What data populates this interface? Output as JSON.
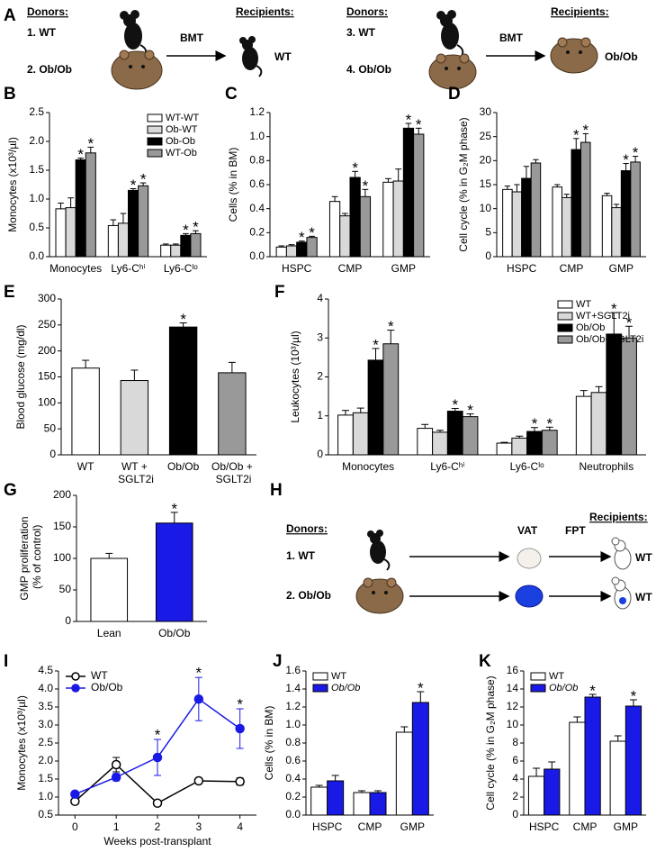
{
  "panel_a": {
    "panel": "A",
    "donors_left": "Donors:",
    "donor_1": "1. WT",
    "donor_2": "2. Ob/Ob",
    "arrow_left": "BMT",
    "recipients_left": "Recipients:",
    "recipient_left": "WT",
    "donors_right": "Donors:",
    "donor_3": "3. WT",
    "donor_4": "4. Ob/Ob",
    "arrow_right": "BMT",
    "recipients_right": "Recipients:",
    "recipient_right": "Ob/Ob"
  },
  "panel_h": {
    "panel": "H",
    "donors": "Donors:",
    "donor_1": "1. WT",
    "donor_2": "2. Ob/Ob",
    "tissue": "VAT",
    "procedure": "FPT",
    "recipients": "Recipients:",
    "recipient_1": "WT",
    "recipient_2": "WT"
  },
  "chart_data": [
    {
      "type": "bar",
      "panel": "B",
      "ylabel": "Monocytes (x10³/µl)",
      "categories": [
        "Monocytes",
        "Ly6-Cʰⁱ",
        "Ly6-Cˡᵒ"
      ],
      "ylim": [
        0,
        2.5
      ],
      "yticks": [
        {
          "value": 0,
          "label": "0.0"
        },
        0.5,
        {
          "value": 1,
          "label": "1.0"
        },
        1.5,
        {
          "value": 2,
          "label": "2.0"
        },
        2.5
      ],
      "legend": "top-right",
      "series": [
        {
          "name": "WT-WT",
          "color": "#ffffff",
          "values": [
            0.83,
            0.54,
            0.2
          ],
          "errors": [
            0.1,
            0.1,
            0.02
          ]
        },
        {
          "name": "Ob-WT",
          "color": "#d9d9d9",
          "values": [
            0.85,
            0.58,
            0.2
          ],
          "errors": [
            0.17,
            0.17,
            0.02
          ]
        },
        {
          "name": "Ob-Ob",
          "color": "#000000",
          "values": [
            1.68,
            1.15,
            0.37
          ],
          "errors": [
            0.03,
            0.03,
            0.03
          ],
          "stars": [
            "*",
            "*",
            "*"
          ]
        },
        {
          "name": "WT-Ob",
          "color": "#999999",
          "values": [
            1.8,
            1.23,
            0.4
          ],
          "errors": [
            0.1,
            0.05,
            0.05
          ],
          "stars": [
            "*",
            "*",
            "*"
          ]
        }
      ]
    },
    {
      "type": "bar",
      "panel": "C",
      "ylabel": "Cells (% in BM)",
      "categories": [
        "HSPC",
        "CMP",
        "GMP"
      ],
      "ylim": [
        0,
        1.2
      ],
      "yticks": [
        {
          "value": 0,
          "label": "0.0"
        },
        0.2,
        0.4,
        0.6,
        0.8,
        {
          "value": 1,
          "label": "1.0"
        },
        1.2
      ],
      "series": [
        {
          "color": "#ffffff",
          "values": [
            0.08,
            0.46,
            0.62
          ],
          "errors": [
            0.01,
            0.04,
            0.03
          ]
        },
        {
          "color": "#d9d9d9",
          "values": [
            0.09,
            0.34,
            0.63
          ],
          "errors": [
            0.01,
            0.02,
            0.1
          ]
        },
        {
          "color": "#000000",
          "values": [
            0.12,
            0.66,
            1.07
          ],
          "errors": [
            0.01,
            0.05,
            0.04
          ],
          "stars": [
            "*",
            "*",
            "*"
          ]
        },
        {
          "color": "#999999",
          "values": [
            0.16,
            0.5,
            1.02
          ],
          "errors": [
            0.01,
            0.06,
            0.05
          ],
          "stars": [
            "*",
            "*",
            "*"
          ]
        }
      ]
    },
    {
      "type": "bar",
      "panel": "D",
      "ylabel": "Cell cycle (% in G₂M phase)",
      "categories": [
        "HSPC",
        "CMP",
        "GMP"
      ],
      "ylim": [
        0,
        30
      ],
      "yticks": [
        0,
        5,
        10,
        15,
        20,
        25,
        30
      ],
      "series": [
        {
          "color": "#ffffff",
          "values": [
            14,
            14.5,
            12.7
          ],
          "errors": [
            0.7,
            0.5,
            0.5
          ]
        },
        {
          "color": "#d9d9d9",
          "values": [
            13.5,
            12.3,
            10.2
          ],
          "errors": [
            1.5,
            0.7,
            0.7
          ]
        },
        {
          "color": "#000000",
          "values": [
            16.3,
            22.3,
            17.9
          ],
          "errors": [
            2.5,
            2.3,
            1.5
          ],
          "stars": [
            null,
            "*",
            "*"
          ]
        },
        {
          "color": "#999999",
          "values": [
            19.5,
            23.8,
            19.7
          ],
          "errors": [
            0.7,
            1.8,
            1.2
          ],
          "stars": [
            null,
            "*",
            "*"
          ]
        }
      ]
    },
    {
      "type": "bar",
      "panel": "E",
      "ylabel": "Blood glucose (mg/dl)",
      "categories": [
        "WT",
        "WT + SGLT2i",
        "Ob/Ob",
        "Ob/Ob + SGLT2i"
      ],
      "ylim": [
        0,
        300
      ],
      "yticks": [
        0,
        50,
        100,
        150,
        200,
        250,
        300
      ],
      "series": [
        {
          "colors": [
            "#ffffff",
            "#d9d9d9",
            "#000000",
            "#999999"
          ],
          "values": [
            167,
            143,
            246,
            158
          ],
          "errors": [
            15,
            20,
            8,
            20
          ],
          "stars": [
            null,
            null,
            "*",
            null
          ]
        }
      ]
    },
    {
      "type": "bar",
      "panel": "F",
      "ylabel": "Leukocytes (10³/µl)",
      "categories": [
        "Monocytes",
        "Ly6-Cʰⁱ",
        "Ly6-Cˡᵒ",
        "Neutrophils"
      ],
      "ylim": [
        0,
        4
      ],
      "yticks": [
        0,
        1,
        2,
        3,
        4
      ],
      "legend": "top-right",
      "series": [
        {
          "name": "WT",
          "color": "#ffffff",
          "values": [
            1.02,
            0.68,
            0.3,
            1.5
          ],
          "errors": [
            0.12,
            0.1,
            0.02,
            0.15
          ]
        },
        {
          "name": "WT+SGLT2i",
          "color": "#d9d9d9",
          "values": [
            1.08,
            0.58,
            0.43,
            1.6
          ],
          "errors": [
            0.12,
            0.05,
            0.05,
            0.15
          ]
        },
        {
          "name": "Ob/Ob",
          "color": "#000000",
          "values": [
            2.43,
            1.12,
            0.6,
            3.1
          ],
          "errors": [
            0.3,
            0.07,
            0.1,
            0.55
          ],
          "stars": [
            "*",
            "*",
            "*",
            "*"
          ]
        },
        {
          "name": "Ob/Ob+SGLT2i",
          "color": "#999999",
          "values": [
            2.85,
            0.98,
            0.63,
            3.0
          ],
          "errors": [
            0.35,
            0.07,
            0.08,
            0.3
          ],
          "stars": [
            "*",
            "*",
            "*",
            "*"
          ]
        }
      ]
    },
    {
      "type": "bar",
      "panel": "G",
      "ylabel": "GMP proliferation (% of control)",
      "categories": [
        "Lean",
        "Ob/Ob"
      ],
      "ylim": [
        0,
        200
      ],
      "yticks": [
        0,
        50,
        100,
        150,
        200
      ],
      "series": [
        {
          "colors": [
            "#ffffff",
            "#1a1ae6"
          ],
          "values": [
            100,
            156
          ],
          "errors": [
            8,
            17
          ],
          "stars": [
            null,
            "*"
          ]
        }
      ]
    },
    {
      "type": "line",
      "panel": "I",
      "ylabel": "Monocytes (x10³/µl)",
      "xlabel": "Weeks post-transplant",
      "x": [
        0,
        1,
        2,
        3,
        4
      ],
      "xlim": [
        -0.4,
        4.4
      ],
      "xticks": [
        0,
        1,
        2,
        3,
        4
      ],
      "ylim": [
        0.5,
        4.5
      ],
      "yticks": [
        0.5,
        {
          "value": 1,
          "label": "1.0"
        },
        1.5,
        {
          "value": 2,
          "label": "2.0"
        },
        2.5,
        {
          "value": 3,
          "label": "3.0"
        },
        3.5,
        {
          "value": 4,
          "label": "4.0"
        },
        4.5
      ],
      "legend": "top-left",
      "series": [
        {
          "name": "WT",
          "color": "#000000",
          "markerfill": "#ffffff",
          "values": [
            0.88,
            1.9,
            0.83,
            1.45,
            1.43
          ],
          "errors": [
            0.07,
            0.2,
            0.08,
            0.03,
            0.1
          ]
        },
        {
          "name": "Ob/Ob",
          "color": "#1a1ae6",
          "markerfill": "#1a1ae6",
          "values": [
            1.08,
            1.55,
            2.1,
            3.72,
            2.9
          ],
          "errors": [
            0.07,
            0.1,
            0.5,
            0.6,
            0.55
          ],
          "stars": [
            null,
            null,
            "*",
            "*",
            "*"
          ]
        }
      ]
    },
    {
      "type": "bar",
      "panel": "J",
      "ylabel": "Cells (% in BM)",
      "categories": [
        "HSPC",
        "CMP",
        "GMP"
      ],
      "ylim": [
        0,
        1.6
      ],
      "yticks": [
        {
          "value": 0,
          "label": "0.0"
        },
        0.2,
        0.4,
        0.6,
        0.8,
        {
          "value": 1,
          "label": "1.0"
        },
        1.2,
        1.4,
        1.6
      ],
      "legend": "top-left",
      "series": [
        {
          "name": "WT",
          "color": "#ffffff",
          "values": [
            0.31,
            0.25,
            0.92
          ],
          "errors": [
            0.02,
            0.02,
            0.06
          ]
        },
        {
          "name": "Ob/Ob",
          "color": "#1a1ae6",
          "font_style": "italic",
          "values": [
            0.38,
            0.25,
            1.25
          ],
          "errors": [
            0.06,
            0.02,
            0.12
          ],
          "stars": [
            null,
            null,
            "*"
          ]
        }
      ]
    },
    {
      "type": "bar",
      "panel": "K",
      "ylabel": "Cell cycle (% in G₂M phase)",
      "categories": [
        "HSPC",
        "CMP",
        "GMP"
      ],
      "ylim": [
        0,
        16
      ],
      "yticks": [
        0,
        2,
        4,
        6,
        8,
        10,
        12,
        14,
        16
      ],
      "legend": "top-left",
      "series": [
        {
          "name": "WT",
          "color": "#ffffff",
          "values": [
            4.3,
            10.3,
            8.2
          ],
          "errors": [
            0.9,
            0.6,
            0.6
          ]
        },
        {
          "name": "Ob/Ob",
          "color": "#1a1ae6",
          "font_style": "italic",
          "values": [
            5.1,
            13.1,
            12.1
          ],
          "errors": [
            0.8,
            0.3,
            0.7
          ],
          "stars": [
            null,
            "*",
            "*"
          ]
        }
      ]
    }
  ]
}
